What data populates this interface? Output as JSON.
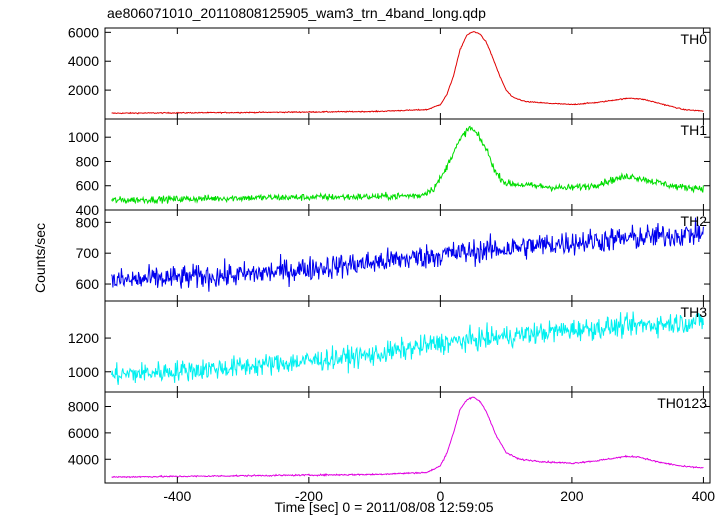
{
  "chart_data": {
    "type": "line",
    "title": "ae806071010_20110808125905_wam3_trn_4band_long.qdp",
    "xlabel": "Time [sec] 0 = 2011/08/08 12:59:05",
    "ylabel": "Counts/sec",
    "xlim": [
      -510,
      410
    ],
    "x_ticks": [
      -400,
      -200,
      0,
      200,
      400
    ],
    "panels": [
      {
        "name": "TH0",
        "color": "#e00000",
        "ylim": [
          0,
          6300
        ],
        "y_ticks": [
          2000,
          4000,
          6000
        ],
        "noise": 25,
        "points": [
          [
            -500,
            400
          ],
          [
            -300,
            450
          ],
          [
            -100,
            520
          ],
          [
            -20,
            650
          ],
          [
            0,
            1000
          ],
          [
            10,
            1700
          ],
          [
            20,
            3000
          ],
          [
            30,
            4800
          ],
          [
            40,
            5800
          ],
          [
            50,
            6050
          ],
          [
            60,
            5900
          ],
          [
            70,
            5300
          ],
          [
            80,
            4200
          ],
          [
            90,
            3000
          ],
          [
            100,
            2000
          ],
          [
            110,
            1500
          ],
          [
            130,
            1200
          ],
          [
            160,
            1100
          ],
          [
            200,
            1000
          ],
          [
            240,
            1150
          ],
          [
            270,
            1350
          ],
          [
            290,
            1450
          ],
          [
            310,
            1350
          ],
          [
            340,
            1000
          ],
          [
            370,
            650
          ],
          [
            400,
            550
          ]
        ]
      },
      {
        "name": "TH1",
        "color": "#00dd00",
        "ylim": [
          400,
          1150
        ],
        "y_ticks": [
          400,
          600,
          800,
          1000
        ],
        "noise": 20,
        "points": [
          [
            -500,
            480
          ],
          [
            -300,
            500
          ],
          [
            -100,
            510
          ],
          [
            -30,
            520
          ],
          [
            -10,
            580
          ],
          [
            5,
            700
          ],
          [
            20,
            880
          ],
          [
            35,
            1020
          ],
          [
            45,
            1080
          ],
          [
            55,
            1030
          ],
          [
            70,
            900
          ],
          [
            85,
            700
          ],
          [
            100,
            620
          ],
          [
            140,
            600
          ],
          [
            190,
            580
          ],
          [
            230,
            600
          ],
          [
            270,
            660
          ],
          [
            290,
            680
          ],
          [
            320,
            640
          ],
          [
            360,
            590
          ],
          [
            400,
            580
          ]
        ]
      },
      {
        "name": "TH2",
        "color": "#0000ee",
        "ylim": [
          545,
          840
        ],
        "y_ticks": [
          600,
          700,
          800
        ],
        "noise": 28,
        "points": [
          [
            -500,
            610
          ],
          [
            -300,
            630
          ],
          [
            -100,
            670
          ],
          [
            0,
            695
          ],
          [
            200,
            735
          ],
          [
            400,
            765
          ]
        ]
      },
      {
        "name": "TH3",
        "color": "#00f0f0",
        "ylim": [
          880,
          1420
        ],
        "y_ticks": [
          1000,
          1200
        ],
        "noise": 45,
        "points": [
          [
            -500,
            980
          ],
          [
            -300,
            1030
          ],
          [
            -100,
            1100
          ],
          [
            0,
            1170
          ],
          [
            200,
            1250
          ],
          [
            400,
            1300
          ]
        ]
      },
      {
        "name": "TH0123",
        "color": "#e000e0",
        "ylim": [
          2200,
          9100
        ],
        "y_ticks": [
          4000,
          6000,
          8000
        ],
        "noise": 40,
        "points": [
          [
            -500,
            2650
          ],
          [
            -300,
            2750
          ],
          [
            -100,
            2850
          ],
          [
            -20,
            3000
          ],
          [
            0,
            3500
          ],
          [
            10,
            4500
          ],
          [
            20,
            6000
          ],
          [
            30,
            7800
          ],
          [
            40,
            8500
          ],
          [
            50,
            8700
          ],
          [
            60,
            8400
          ],
          [
            70,
            7600
          ],
          [
            85,
            5800
          ],
          [
            100,
            4500
          ],
          [
            120,
            4000
          ],
          [
            160,
            3800
          ],
          [
            200,
            3700
          ],
          [
            240,
            3900
          ],
          [
            280,
            4200
          ],
          [
            300,
            4200
          ],
          [
            330,
            3800
          ],
          [
            370,
            3450
          ],
          [
            400,
            3350
          ]
        ]
      }
    ]
  }
}
